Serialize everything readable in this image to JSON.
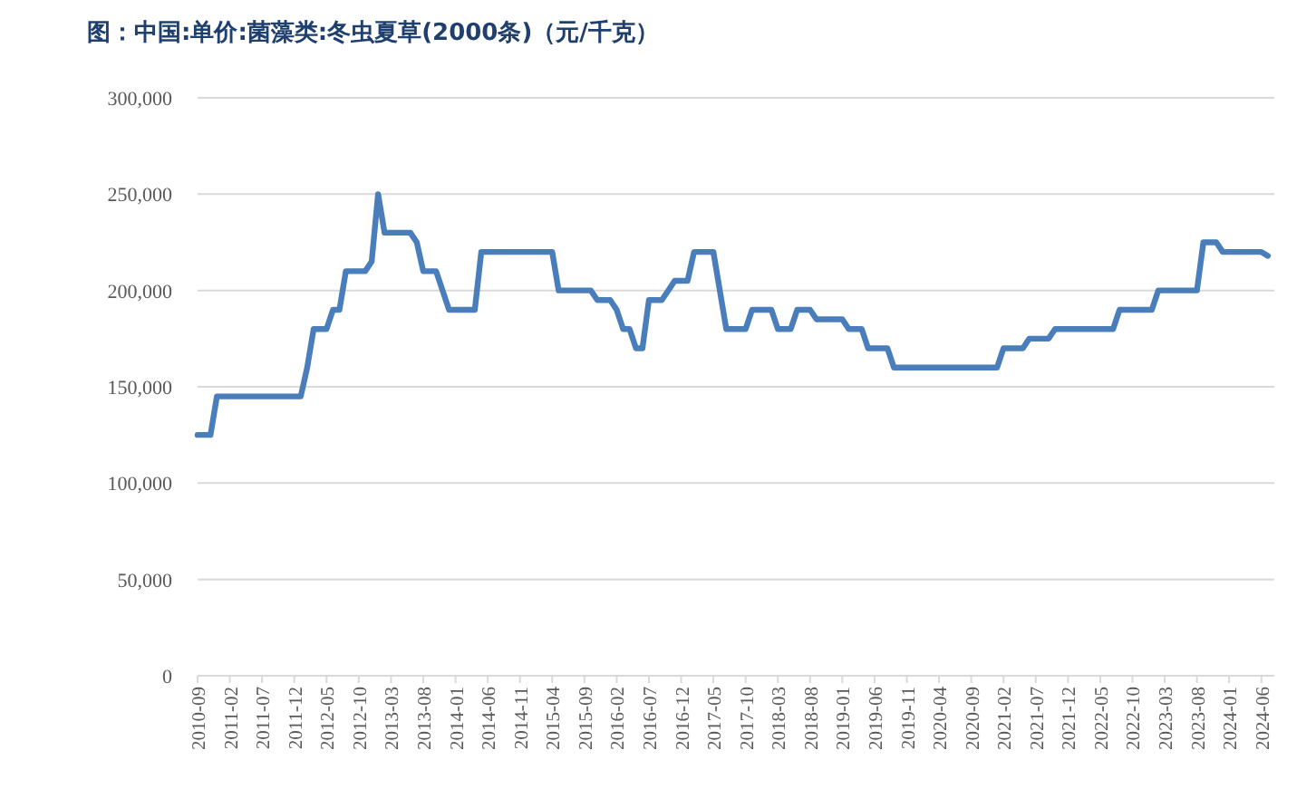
{
  "chart_data": {
    "type": "line",
    "title": "图：中国:单价:菌藻类:冬虫夏草(2000条)（元/千克）",
    "series": [
      {
        "color": "#4a7ebb",
        "x": [
          "2010-09",
          "2010-11",
          "2010-12",
          "2012-01",
          "2012-02",
          "2012-03",
          "2012-05",
          "2012-06",
          "2012-07",
          "2012-08",
          "2012-11",
          "2012-12",
          "2013-01",
          "2013-02",
          "2013-06",
          "2013-07",
          "2013-08",
          "2013-10",
          "2013-12",
          "2014-04",
          "2014-05",
          "2015-04",
          "2015-05",
          "2015-10",
          "2015-11",
          "2016-01",
          "2016-02",
          "2016-03",
          "2016-04",
          "2016-05",
          "2016-06",
          "2016-07",
          "2016-09",
          "2016-10",
          "2016-11",
          "2017-01",
          "2017-02",
          "2017-05",
          "2017-07",
          "2017-10",
          "2017-11",
          "2018-02",
          "2018-03",
          "2018-05",
          "2018-06",
          "2018-08",
          "2018-09",
          "2019-01",
          "2019-02",
          "2019-04",
          "2019-05",
          "2019-08",
          "2019-09",
          "2021-01",
          "2021-02",
          "2021-05",
          "2021-06",
          "2021-09",
          "2021-10",
          "2022-07",
          "2022-08",
          "2023-01",
          "2023-02",
          "2023-08",
          "2023-09",
          "2023-11",
          "2023-12",
          "2024-06",
          "2024-07"
        ],
        "values": [
          125000,
          125000,
          145000,
          145000,
          160000,
          180000,
          180000,
          190000,
          190000,
          210000,
          210000,
          215000,
          250000,
          230000,
          230000,
          225000,
          210000,
          210000,
          190000,
          190000,
          220000,
          220000,
          200000,
          200000,
          195000,
          195000,
          190000,
          180000,
          180000,
          170000,
          170000,
          195000,
          195000,
          200000,
          205000,
          205000,
          220000,
          220000,
          180000,
          180000,
          190000,
          190000,
          180000,
          180000,
          190000,
          190000,
          185000,
          185000,
          180000,
          180000,
          170000,
          170000,
          160000,
          160000,
          170000,
          170000,
          175000,
          175000,
          180000,
          180000,
          190000,
          190000,
          200000,
          200000,
          225000,
          225000,
          220000,
          220000,
          218000
        ]
      }
    ],
    "xlim": [
      "2010-09",
      "2024-08"
    ],
    "xticks": [
      "2010-09",
      "2011-02",
      "2011-07",
      "2011-12",
      "2012-05",
      "2012-10",
      "2013-03",
      "2013-08",
      "2014-01",
      "2014-06",
      "2014-11",
      "2015-04",
      "2015-09",
      "2016-02",
      "2016-07",
      "2016-12",
      "2017-05",
      "2017-10",
      "2018-03",
      "2018-08",
      "2019-01",
      "2019-06",
      "2019-11",
      "2020-04",
      "2020-09",
      "2021-02",
      "2021-07",
      "2021-12",
      "2022-05",
      "2022-10",
      "2023-03",
      "2023-08",
      "2024-01",
      "2024-06"
    ],
    "ylim": [
      0,
      300000
    ],
    "yticks": [
      0,
      {
        "value": 50000,
        "label": "50,000"
      },
      {
        "value": 100000,
        "label": "100,000"
      },
      {
        "value": 150000,
        "label": "150,000"
      },
      {
        "value": 200000,
        "label": "200,000"
      },
      {
        "value": 250000,
        "label": "250,000"
      },
      {
        "value": 300000,
        "label": "300,000"
      }
    ],
    "grid": "y",
    "line_style": "solid"
  }
}
